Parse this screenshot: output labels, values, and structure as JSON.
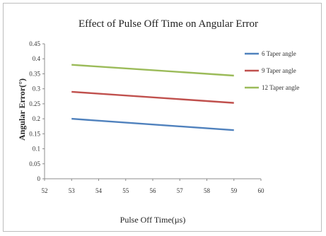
{
  "chart_data": {
    "type": "line",
    "title": "Effect of Pulse Off Time on Angular Error",
    "xlabel": "Pulse Off Time(µs)",
    "ylabel": "Angular Error(°)",
    "xlim": [
      52,
      60
    ],
    "ylim": [
      0,
      0.45
    ],
    "xticks": [
      "52",
      "53",
      "54",
      "55",
      "56",
      "57",
      "58",
      "59",
      "60"
    ],
    "yticks": [
      "0",
      "0.05",
      "0.1",
      "0.15",
      "0.2",
      "0.25",
      "0.3",
      "0.35",
      "0.4",
      "0.45"
    ],
    "grid": false,
    "legend_position": "right",
    "series": [
      {
        "name": "6 Taper angle",
        "color": "#4f81bd",
        "x": [
          53,
          59
        ],
        "y": [
          0.2,
          0.162
        ]
      },
      {
        "name": "9 Taper angle",
        "color": "#c0504d",
        "x": [
          53,
          59
        ],
        "y": [
          0.29,
          0.253
        ]
      },
      {
        "name": "12 Taper angle",
        "color": "#9bbb59",
        "x": [
          53,
          59
        ],
        "y": [
          0.38,
          0.344
        ]
      }
    ]
  }
}
